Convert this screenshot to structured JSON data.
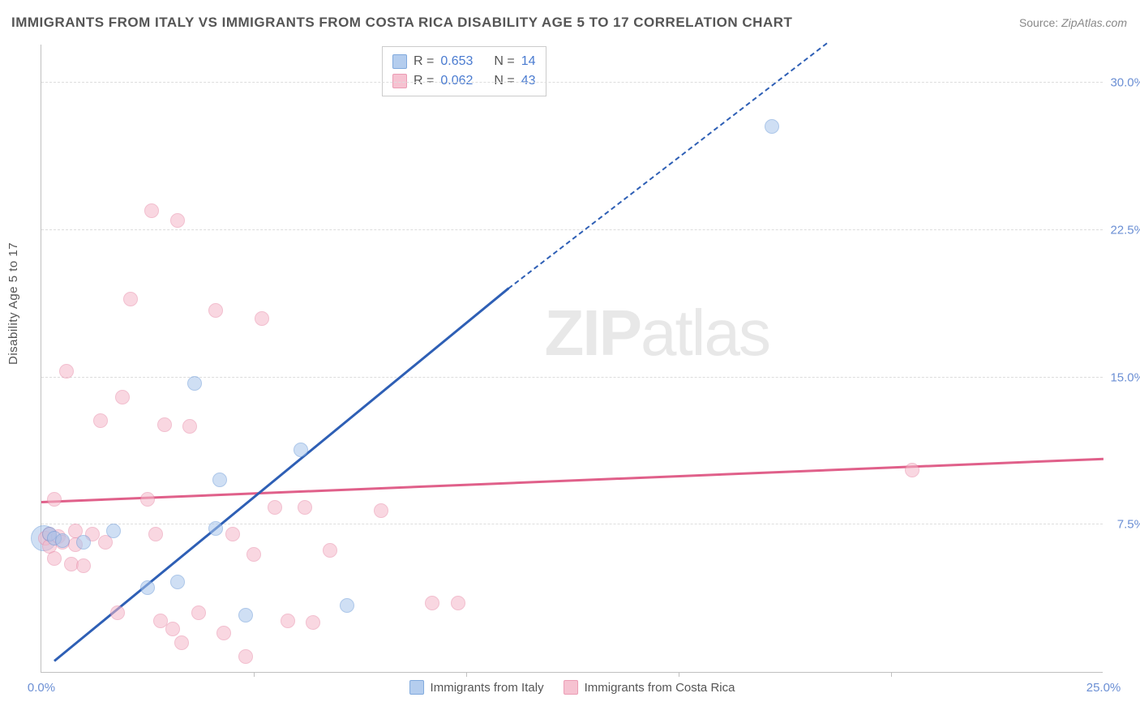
{
  "title": "IMMIGRANTS FROM ITALY VS IMMIGRANTS FROM COSTA RICA DISABILITY AGE 5 TO 17 CORRELATION CHART",
  "source_prefix": "Source: ",
  "source_name": "ZipAtlas.com",
  "y_axis_title": "Disability Age 5 to 17",
  "watermark_zip": "ZIP",
  "watermark_atlas": "atlas",
  "chart": {
    "type": "scatter",
    "xlim": [
      0,
      25
    ],
    "ylim": [
      0,
      32
    ],
    "y_ticks": [
      7.5,
      15.0,
      22.5,
      30.0
    ],
    "y_tick_labels": [
      "7.5%",
      "15.0%",
      "22.5%",
      "30.0%"
    ],
    "x_ticks": [
      0,
      5,
      10,
      15,
      20,
      25
    ],
    "x_tick_labels_shown": {
      "0": "0.0%",
      "25": "25.0%"
    },
    "background_color": "#ffffff",
    "grid_color": "#dddddd",
    "axis_color": "#c0c0c0",
    "tick_label_color": "#6b8fd4"
  },
  "series": {
    "italy": {
      "label": "Immigrants from Italy",
      "fill_color": "#a8c5ec",
      "stroke_color": "#6b9bd8",
      "fill_opacity": 0.55,
      "marker_radius": 9,
      "trend_color": "#2e5fb5",
      "trend_width": 3,
      "trend_start": [
        0.3,
        0.5
      ],
      "trend_solid_end": [
        11.0,
        19.5
      ],
      "trend_dash_end": [
        18.5,
        32.0
      ],
      "R": "0.653",
      "N": "14",
      "points": [
        [
          0.2,
          7.0
        ],
        [
          0.3,
          6.8
        ],
        [
          0.5,
          6.7
        ],
        [
          1.0,
          6.6
        ],
        [
          1.7,
          7.2
        ],
        [
          2.5,
          4.3
        ],
        [
          3.2,
          4.6
        ],
        [
          3.6,
          14.7
        ],
        [
          4.1,
          7.3
        ],
        [
          4.2,
          9.8
        ],
        [
          4.8,
          2.9
        ],
        [
          6.1,
          11.3
        ],
        [
          7.2,
          3.4
        ],
        [
          17.2,
          27.8
        ]
      ],
      "large_point": [
        0.05,
        6.8
      ],
      "large_point_radius": 16
    },
    "costarica": {
      "label": "Immigrants from Costa Rica",
      "fill_color": "#f5b8c9",
      "stroke_color": "#e88ba8",
      "fill_opacity": 0.55,
      "marker_radius": 9,
      "trend_color": "#e0608a",
      "trend_width": 3,
      "trend_start": [
        0,
        8.6
      ],
      "trend_end": [
        25,
        10.8
      ],
      "R": "0.062",
      "N": "43",
      "points": [
        [
          0.1,
          6.8
        ],
        [
          0.2,
          7.0
        ],
        [
          0.2,
          6.4
        ],
        [
          0.3,
          8.8
        ],
        [
          0.3,
          5.8
        ],
        [
          0.4,
          6.9
        ],
        [
          0.5,
          6.6
        ],
        [
          0.6,
          15.3
        ],
        [
          0.7,
          5.5
        ],
        [
          0.8,
          6.5
        ],
        [
          0.8,
          7.2
        ],
        [
          1.0,
          5.4
        ],
        [
          1.2,
          7.0
        ],
        [
          1.4,
          12.8
        ],
        [
          1.5,
          6.6
        ],
        [
          1.8,
          3.0
        ],
        [
          1.9,
          14.0
        ],
        [
          2.1,
          19.0
        ],
        [
          2.5,
          8.8
        ],
        [
          2.6,
          23.5
        ],
        [
          2.7,
          7.0
        ],
        [
          2.8,
          2.6
        ],
        [
          2.9,
          12.6
        ],
        [
          3.1,
          2.2
        ],
        [
          3.2,
          23.0
        ],
        [
          3.3,
          1.5
        ],
        [
          3.5,
          12.5
        ],
        [
          3.7,
          3.0
        ],
        [
          4.1,
          18.4
        ],
        [
          4.3,
          2.0
        ],
        [
          4.5,
          7.0
        ],
        [
          4.8,
          0.8
        ],
        [
          5.2,
          18.0
        ],
        [
          5.5,
          8.4
        ],
        [
          5.8,
          2.6
        ],
        [
          6.2,
          8.4
        ],
        [
          6.4,
          2.5
        ],
        [
          6.8,
          6.2
        ],
        [
          8.0,
          8.2
        ],
        [
          9.2,
          3.5
        ],
        [
          9.8,
          3.5
        ],
        [
          20.5,
          10.3
        ],
        [
          5.0,
          6.0
        ]
      ]
    }
  },
  "legend_stats": {
    "r_label": "R =",
    "n_label": "N ="
  }
}
